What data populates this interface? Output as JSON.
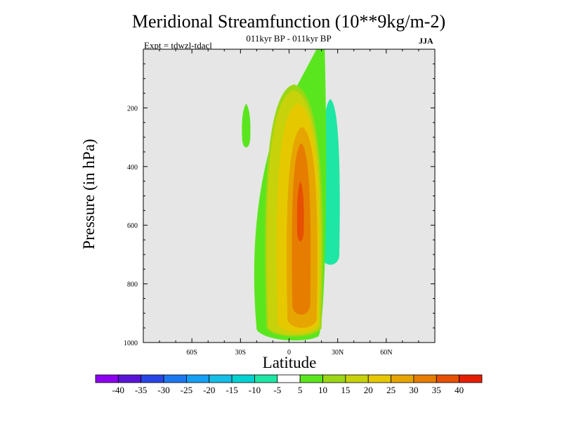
{
  "chart_data": {
    "type": "contour-filled",
    "title": "Meridional Streamfunction (10**9kg/m-2)",
    "subtitle": "011kyr BP - 011kyr BP",
    "experiment": "Expt = tdwzl-tdacl",
    "season": "JJA",
    "xlabel": "Latitude",
    "ylabel": "Pressure (in hPa)",
    "xlim": [
      -90,
      90
    ],
    "ylim": [
      1000,
      0
    ],
    "x_ticks": [
      {
        "value": -60,
        "label": "60S"
      },
      {
        "value": -30,
        "label": "30S"
      },
      {
        "value": 0,
        "label": "0"
      },
      {
        "value": 30,
        "label": "30N"
      },
      {
        "value": 60,
        "label": "60N"
      }
    ],
    "y_ticks": [
      {
        "value": 200,
        "label": "200"
      },
      {
        "value": 400,
        "label": "400"
      },
      {
        "value": 600,
        "label": "600"
      },
      {
        "value": 800,
        "label": "800"
      },
      {
        "value": 1000,
        "label": "1000"
      }
    ],
    "colorbar": {
      "levels": [
        "-40",
        "-35",
        "-30",
        "-25",
        "-20",
        "-15",
        "-10",
        "-5",
        "5",
        "10",
        "15",
        "20",
        "25",
        "30",
        "35",
        "40"
      ],
      "colors": [
        "#8c00f0",
        "#5a14d8",
        "#2846e6",
        "#1e78f0",
        "#14a0f5",
        "#14bee6",
        "#00d2d2",
        "#1ee6a5",
        "#ffffff",
        "#5ae61e",
        "#9bd714",
        "#c8d20a",
        "#e6c800",
        "#e6a500",
        "#e67d00",
        "#e65000",
        "#e61e00"
      ]
    },
    "regions": [
      {
        "level": "-10 to -5",
        "color": "#1ee6a5",
        "label": "negative cell near 30N, 200-720 hPa",
        "lat": [
          20,
          31
        ],
        "p": [
          170,
          730
        ]
      },
      {
        "level": "5 to 10",
        "color": "#5ae61e",
        "label": "positive cell 20S-22N",
        "lat": [
          -20,
          22
        ],
        "p": [
          0,
          980
        ]
      },
      {
        "level": "5 to 10",
        "color": "#5ae61e",
        "label": "small cell near 28S, 190-330 hPa",
        "lat": [
          -29,
          -24
        ],
        "p": [
          185,
          330
        ]
      },
      {
        "level": "10 to 15",
        "color": "#9bd714",
        "lat": [
          -14,
          20
        ],
        "p": [
          120,
          975
        ]
      },
      {
        "level": "15 to 20",
        "color": "#c8d20a",
        "lat": [
          -13,
          19
        ],
        "p": [
          140,
          970
        ]
      },
      {
        "level": "20 to 25",
        "color": "#e6c800",
        "lat": [
          -7,
          18
        ],
        "p": [
          185,
          960
        ]
      },
      {
        "level": "25 to 30",
        "color": "#e6a500",
        "lat": [
          -1,
          17
        ],
        "p": [
          265,
          945
        ]
      },
      {
        "level": "30 to 35",
        "color": "#e67d00",
        "lat": [
          2,
          13
        ],
        "p": [
          320,
          900
        ]
      },
      {
        "level": "35 to 40",
        "color": "#e65000",
        "lat": [
          5,
          9
        ],
        "p": [
          450,
          650
        ]
      }
    ],
    "notes": "Negative cell centered near 30N (values -5 to -10); strong positive cell centered near 6N with maximum > 35 near 500-600 hPa."
  }
}
